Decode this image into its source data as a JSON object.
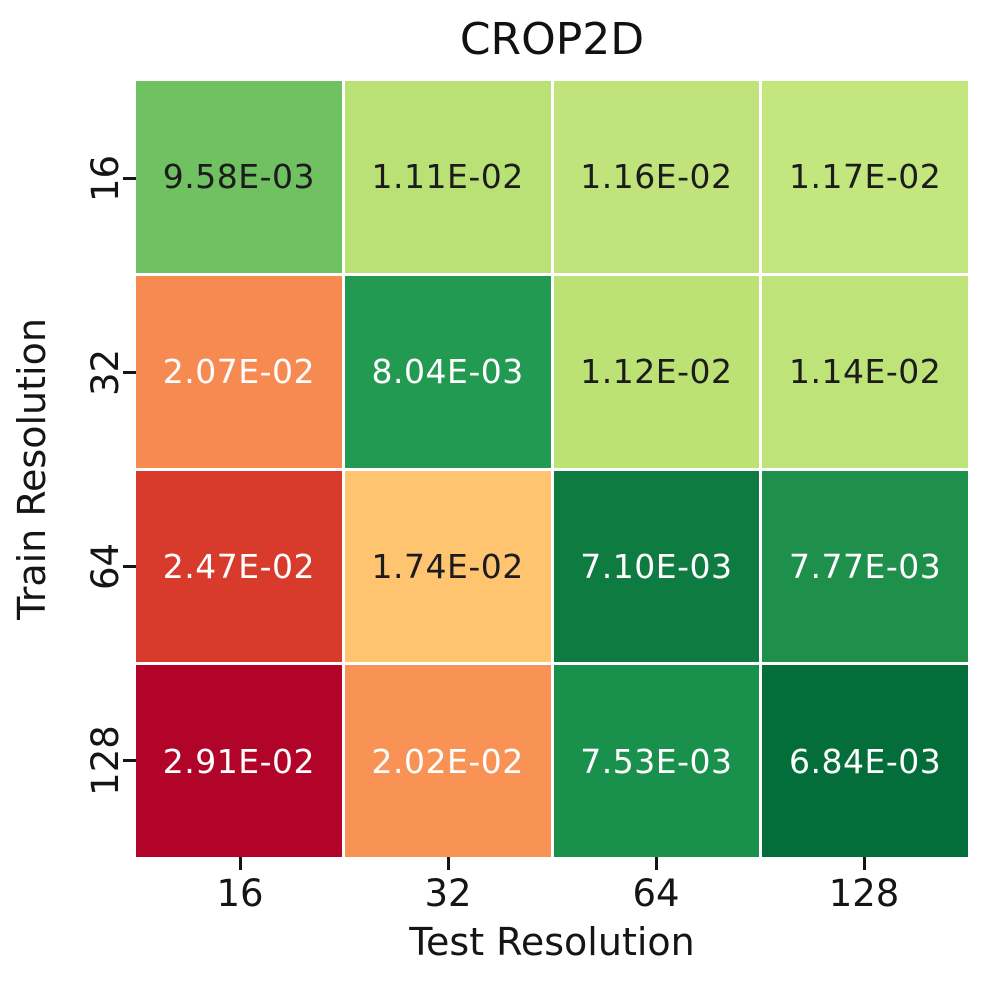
{
  "figure": {
    "title": "CROP2D"
  },
  "chart_data": {
    "type": "heatmap",
    "title": "CROP2D",
    "xlabel": "Test Resolution",
    "ylabel": "Train Resolution",
    "x_tick_labels": [
      "16",
      "32",
      "64",
      "128"
    ],
    "y_tick_labels": [
      "16",
      "32",
      "64",
      "128"
    ],
    "cell_labels": [
      [
        "9.58E-03",
        "1.11E-02",
        "1.16E-02",
        "1.17E-02"
      ],
      [
        "2.07E-02",
        "8.04E-03",
        "1.12E-02",
        "1.14E-02"
      ],
      [
        "2.47E-02",
        "1.74E-02",
        "7.10E-03",
        "7.77E-03"
      ],
      [
        "2.91E-02",
        "2.02E-02",
        "7.53E-03",
        "6.84E-03"
      ]
    ],
    "values": [
      [
        0.00958,
        0.0111,
        0.0116,
        0.0117
      ],
      [
        0.0207,
        0.00804,
        0.0112,
        0.0114
      ],
      [
        0.0247,
        0.0174,
        0.0071,
        0.00777
      ],
      [
        0.0291,
        0.0202,
        0.00753,
        0.00684
      ]
    ],
    "value_range": [
      0.00684,
      0.0291
    ],
    "colormap": "RdYlGn reversed (low=green, high=red)",
    "grid": false,
    "legend": "none",
    "cell_colors": [
      [
        "#6fc161",
        "#b9e175",
        "#c0e47b",
        "#c3e67e"
      ],
      [
        "#f78a50",
        "#239a52",
        "#bce276",
        "#bee378"
      ],
      [
        "#d83a2b",
        "#fec46f",
        "#0e7c41",
        "#1f8f4c"
      ],
      [
        "#b20329",
        "#f89355",
        "#19914c",
        "#046e3b"
      ]
    ],
    "cell_text_colors": [
      [
        "#1c1c1c",
        "#1c1c1c",
        "#1c1c1c",
        "#1c1c1c"
      ],
      [
        "#ffffff",
        "#ffffff",
        "#1c1c1c",
        "#1c1c1c"
      ],
      [
        "#ffffff",
        "#1c1c1c",
        "#ffffff",
        "#ffffff"
      ],
      [
        "#ffffff",
        "#ffffff",
        "#ffffff",
        "#ffffff"
      ]
    ]
  }
}
